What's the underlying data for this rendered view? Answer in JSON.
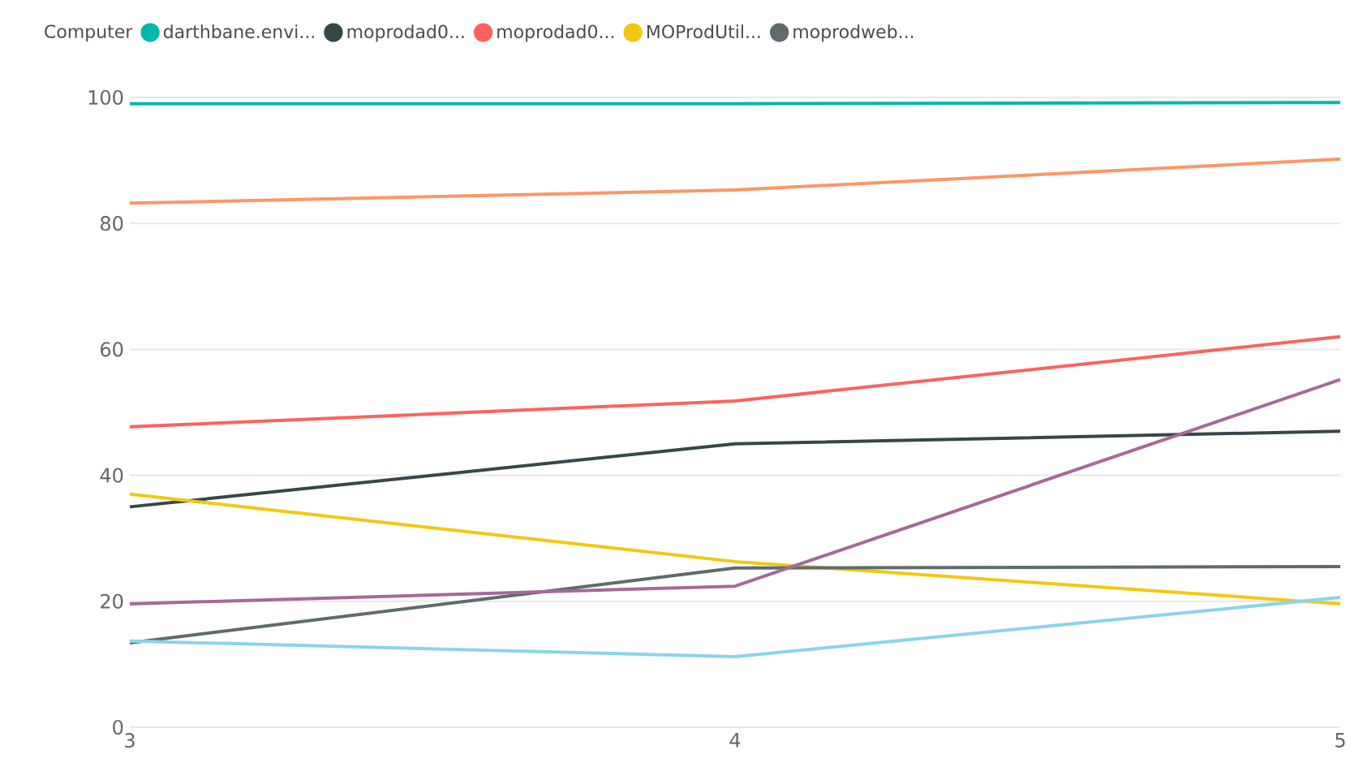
{
  "chart_data": {
    "type": "line",
    "legend_title": "Computer",
    "x": [
      3,
      4,
      5
    ],
    "series": [
      {
        "name": "darthbane.envi...",
        "color": "#01b8aa",
        "values": [
          99,
          99,
          99.2
        ]
      },
      {
        "name": "moprodad0...",
        "color": "#374649",
        "values": [
          35,
          45,
          47
        ]
      },
      {
        "name": "moprodad0...",
        "color": "#fd625e",
        "values": [
          47.7,
          51.8,
          62
        ]
      },
      {
        "name": "MOProdUtil...",
        "color": "#f2c80f",
        "values": [
          37,
          26.3,
          19.6
        ]
      },
      {
        "name": "moprodweb...",
        "color": "#5f6b6d",
        "values": [
          13.4,
          25.3,
          25.5
        ]
      },
      {
        "color": "#8ad4eb",
        "values": [
          13.7,
          11.2,
          20.6
        ]
      },
      {
        "color": "#fe9666",
        "values": [
          83.2,
          85.3,
          90.2
        ]
      },
      {
        "color": "#a66999",
        "values": [
          19.6,
          22.4,
          55.2
        ]
      }
    ],
    "xlim": [
      3,
      5
    ],
    "xticks": [
      3,
      4,
      5
    ],
    "ylim": [
      0,
      100
    ],
    "yticks": [
      0,
      20,
      40,
      60,
      80,
      100
    ],
    "grid": "y",
    "legend": "top left",
    "marker": "none",
    "line_style": "solid"
  }
}
